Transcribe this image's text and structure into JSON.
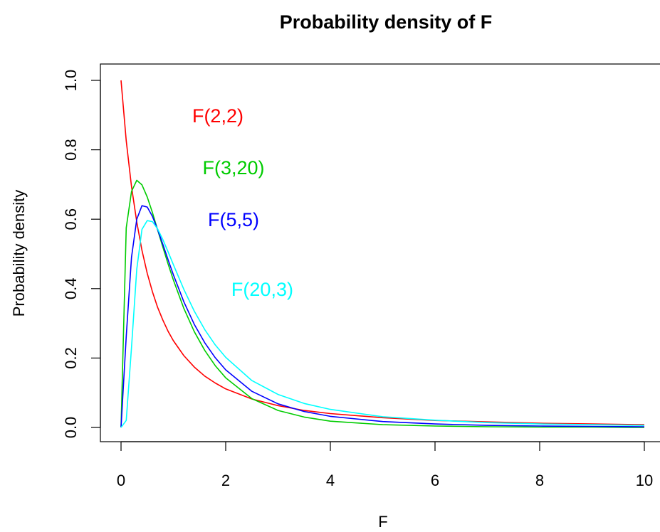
{
  "chart_data": {
    "type": "line",
    "title": "Probability density of F",
    "xlabel": "F",
    "ylabel": "Probability density",
    "xlim": [
      0,
      10
    ],
    "ylim": [
      0,
      1.0
    ],
    "x_ticks": [
      "0",
      "2",
      "4",
      "6",
      "8",
      "10"
    ],
    "y_ticks": [
      "0.0",
      "0.2",
      "0.4",
      "0.6",
      "0.8",
      "1.0"
    ],
    "grid": false,
    "x": [
      0,
      0.1,
      0.2,
      0.3,
      0.4,
      0.5,
      0.6,
      0.7,
      0.8,
      0.9,
      1.0,
      1.2,
      1.4,
      1.6,
      1.8,
      2.0,
      2.5,
      3.0,
      3.5,
      4.0,
      5.0,
      6.0,
      7.0,
      8.0,
      9.0,
      10.0
    ],
    "series": [
      {
        "name": "F(2,2)",
        "color": "#ff0000",
        "values": [
          1.0,
          0.826,
          0.694,
          0.592,
          0.51,
          0.444,
          0.391,
          0.346,
          0.309,
          0.277,
          0.25,
          0.207,
          0.174,
          0.148,
          0.128,
          0.111,
          0.082,
          0.063,
          0.049,
          0.04,
          0.028,
          0.02,
          0.016,
          0.012,
          0.01,
          0.008
        ]
      },
      {
        "name": "F(3,20)",
        "color": "#00cc00",
        "values": [
          0.0,
          0.575,
          0.68,
          0.712,
          0.699,
          0.664,
          0.619,
          0.569,
          0.519,
          0.471,
          0.425,
          0.343,
          0.276,
          0.222,
          0.178,
          0.143,
          0.083,
          0.049,
          0.03,
          0.018,
          0.008,
          0.004,
          0.002,
          0.001,
          0.001,
          0.0
        ]
      },
      {
        "name": "F(5,5)",
        "color": "#0000ff",
        "values": [
          0.0,
          0.262,
          0.49,
          0.6,
          0.639,
          0.635,
          0.608,
          0.57,
          0.527,
          0.483,
          0.44,
          0.362,
          0.297,
          0.244,
          0.201,
          0.166,
          0.104,
          0.068,
          0.046,
          0.032,
          0.017,
          0.01,
          0.006,
          0.004,
          0.003,
          0.002
        ]
      },
      {
        "name": "F(20,3)",
        "color": "#00ffff",
        "values": [
          0.0,
          0.02,
          0.23,
          0.456,
          0.571,
          0.596,
          0.593,
          0.572,
          0.541,
          0.506,
          0.469,
          0.398,
          0.335,
          0.282,
          0.238,
          0.202,
          0.135,
          0.095,
          0.069,
          0.052,
          0.031,
          0.021,
          0.014,
          0.01,
          0.008,
          0.006
        ]
      }
    ]
  }
}
